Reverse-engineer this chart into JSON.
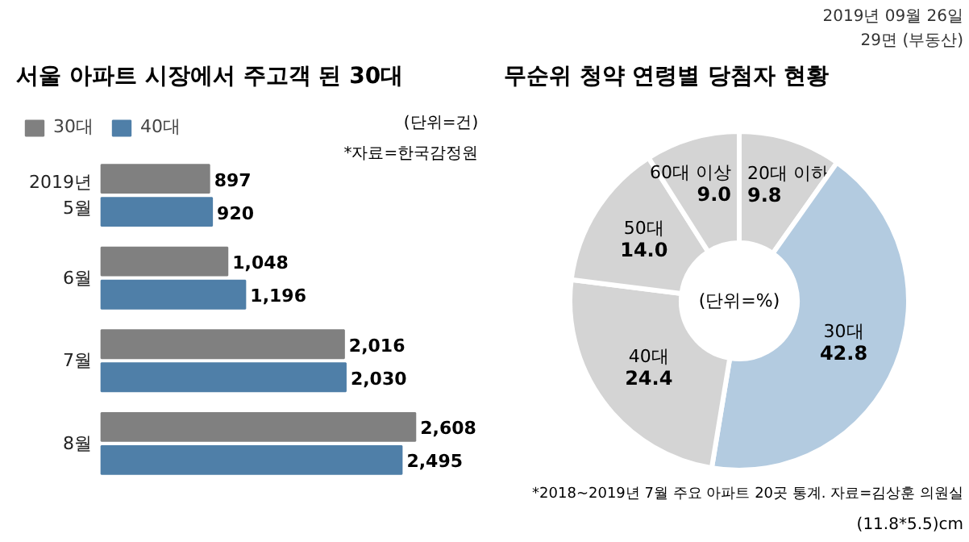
{
  "chart_data": [
    {
      "type": "bar",
      "orientation": "horizontal",
      "title": "서울 아파트 시장에서 주고객 된 30대",
      "categories": [
        "2019년 5월",
        "6월",
        "7월",
        "8월"
      ],
      "series": [
        {
          "name": "30대",
          "color": "#808080",
          "values": [
            897,
            1048,
            2016,
            2608
          ],
          "value_labels": [
            "897",
            "1,048",
            "2,016",
            "2,608"
          ]
        },
        {
          "name": "40대",
          "color": "#4f7fa8",
          "values": [
            920,
            1196,
            2030,
            2495
          ],
          "value_labels": [
            "920",
            "1,196",
            "2,030",
            "2,495"
          ]
        }
      ],
      "data_labels": true,
      "legend": "top left",
      "annotations": [
        "(단위=건)",
        "*자료=한국감정원"
      ]
    },
    {
      "type": "donut",
      "title": "무순위 청약 연령별 당첨자 현황",
      "categories": [
        "20대 이하",
        "30대",
        "40대",
        "50대",
        "60대 이상"
      ],
      "values": [
        9.8,
        42.8,
        24.4,
        14.0,
        9.0
      ],
      "value_labels": [
        "9.8",
        "42.8",
        "24.4",
        "14.0",
        "9.0"
      ],
      "colors": [
        "#d4d4d4",
        "#b3cbe0",
        "#d4d4d4",
        "#d4d4d4",
        "#d4d4d4"
      ],
      "annotations": [
        "2019년 09월 26일",
        "29면 (부동산)",
        "(단위=%)",
        "*2018~2019년 7월 주요 아파트 20곳 통계. 자료=김상훈 의원실",
        "(11.8*5.5)cm"
      ]
    }
  ]
}
